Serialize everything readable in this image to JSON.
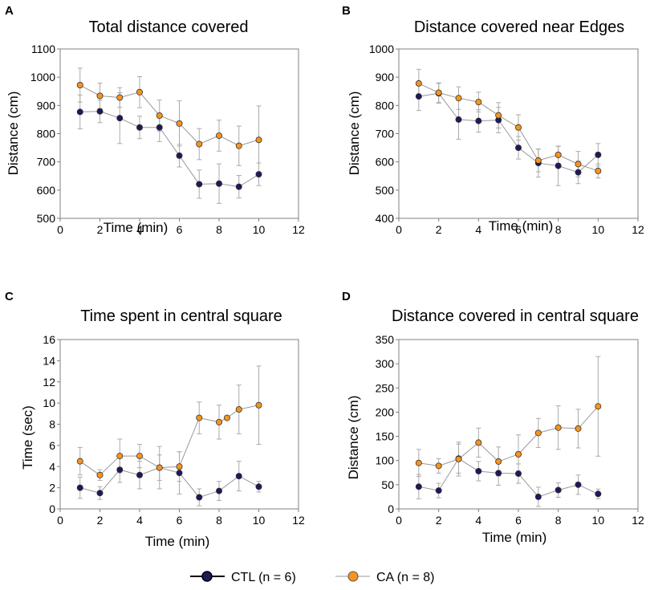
{
  "legend": {
    "ctl_label": "CTL (n = 6)",
    "ca_label": "CA (n = 8)"
  },
  "colors": {
    "ctl": "#1a1a5e",
    "ca": "#f7941d",
    "line": "#999999",
    "errorbar": "#aaaaaa",
    "axis": "#808080"
  },
  "chart_data": [
    {
      "type": "line",
      "panel_label": "A",
      "title": "Total distance covered",
      "xlabel": "Time (min)",
      "ylabel": "Distance (cm)",
      "xlim": [
        0,
        12
      ],
      "ylim": [
        500,
        1100
      ],
      "xticks": [
        0,
        2,
        4,
        6,
        8,
        10,
        12
      ],
      "yticks": [
        500,
        600,
        700,
        800,
        900,
        1000,
        1100
      ],
      "x": [
        1,
        2,
        3,
        4,
        5,
        6,
        7,
        8,
        9,
        10
      ],
      "series": [
        {
          "name": "CTL (n = 6)",
          "values": [
            877,
            879,
            855,
            822,
            822,
            722,
            621,
            623,
            612,
            656
          ],
          "err": [
            60,
            40,
            90,
            40,
            50,
            40,
            50,
            70,
            40,
            40
          ]
        },
        {
          "name": "CA (n = 8)",
          "values": [
            972,
            934,
            928,
            947,
            864,
            836,
            763,
            793,
            757,
            778
          ],
          "err": [
            60,
            45,
            35,
            55,
            55,
            80,
            55,
            55,
            70,
            120
          ]
        }
      ]
    },
    {
      "type": "line",
      "panel_label": "B",
      "title": "Distance covered near Edges",
      "xlabel": "Time (min)",
      "ylabel": "Distance (cm)",
      "xlim": [
        0,
        12
      ],
      "ylim": [
        400,
        1000
      ],
      "xticks": [
        0,
        2,
        4,
        6,
        8,
        10,
        12
      ],
      "yticks": [
        400,
        500,
        600,
        700,
        800,
        900,
        1000
      ],
      "x": [
        1,
        2,
        3,
        4,
        5,
        6,
        7,
        8,
        9,
        10
      ],
      "series": [
        {
          "name": "CTL (n = 6)",
          "values": [
            832,
            843,
            750,
            745,
            748,
            650,
            596,
            586,
            563,
            625
          ],
          "err": [
            50,
            35,
            70,
            40,
            45,
            40,
            50,
            70,
            40,
            40
          ]
        },
        {
          "name": "CA (n = 8)",
          "values": [
            878,
            845,
            826,
            812,
            765,
            722,
            605,
            625,
            592,
            568
          ],
          "err": [
            50,
            35,
            40,
            35,
            45,
            45,
            40,
            30,
            45,
            25
          ]
        }
      ]
    },
    {
      "type": "line",
      "panel_label": "C",
      "title": "Time spent in central square",
      "xlabel": "Time (min)",
      "ylabel": "Time  (sec)",
      "xlim": [
        0,
        12
      ],
      "ylim": [
        0,
        16
      ],
      "xticks": [
        0,
        2,
        4,
        6,
        8,
        10,
        12
      ],
      "yticks": [
        0,
        2,
        4,
        6,
        8,
        10,
        12,
        14,
        16
      ],
      "x": [
        1,
        2,
        3,
        4,
        5,
        6,
        7,
        8,
        9,
        10
      ],
      "series": [
        {
          "name": "CTL (n = 6)",
          "values": [
            2.0,
            1.5,
            3.7,
            3.2,
            3.9,
            3.4,
            1.1,
            1.7,
            3.1,
            2.1
          ],
          "err": [
            1.0,
            0.6,
            1.2,
            1.3,
            1.2,
            2.0,
            0.8,
            0.9,
            1.4,
            0.5
          ]
        },
        {
          "name": "CA (n = 8)",
          "values": [
            4.5,
            3.2,
            5.0,
            5.0,
            3.9,
            4.0,
            8.6,
            8.2,
            8.6,
            9.4,
            9.8
          ],
          "x": [
            1,
            2,
            3,
            4,
            5,
            6,
            7,
            8,
            8.4,
            9,
            10
          ],
          "err": [
            1.3,
            0.5,
            1.6,
            1.1,
            2.0,
            1.4,
            1.5,
            1.6,
            0,
            2.3,
            3.7
          ]
        }
      ]
    },
    {
      "type": "line",
      "panel_label": "D",
      "title": "Distance covered in central square",
      "xlabel": "Time (min)",
      "ylabel": "Distance (cm)",
      "xlim": [
        0,
        12
      ],
      "ylim": [
        0,
        350
      ],
      "xticks": [
        0,
        2,
        4,
        6,
        8,
        10,
        12
      ],
      "yticks": [
        0,
        50,
        100,
        150,
        200,
        250,
        300,
        350
      ],
      "x": [
        1,
        2,
        3,
        4,
        5,
        6,
        7,
        8,
        9,
        10
      ],
      "series": [
        {
          "name": "CTL (n = 6)",
          "values": [
            46,
            38,
            104,
            78,
            74,
            73,
            25,
            39,
            50,
            31
          ],
          "err": [
            25,
            15,
            30,
            20,
            25,
            20,
            20,
            15,
            20,
            10
          ]
        },
        {
          "name": "CA (n = 8)",
          "values": [
            95,
            89,
            103,
            137,
            98,
            113,
            157,
            168,
            166,
            212
          ],
          "err": [
            28,
            15,
            35,
            30,
            30,
            40,
            30,
            45,
            40,
            103
          ]
        }
      ]
    }
  ]
}
